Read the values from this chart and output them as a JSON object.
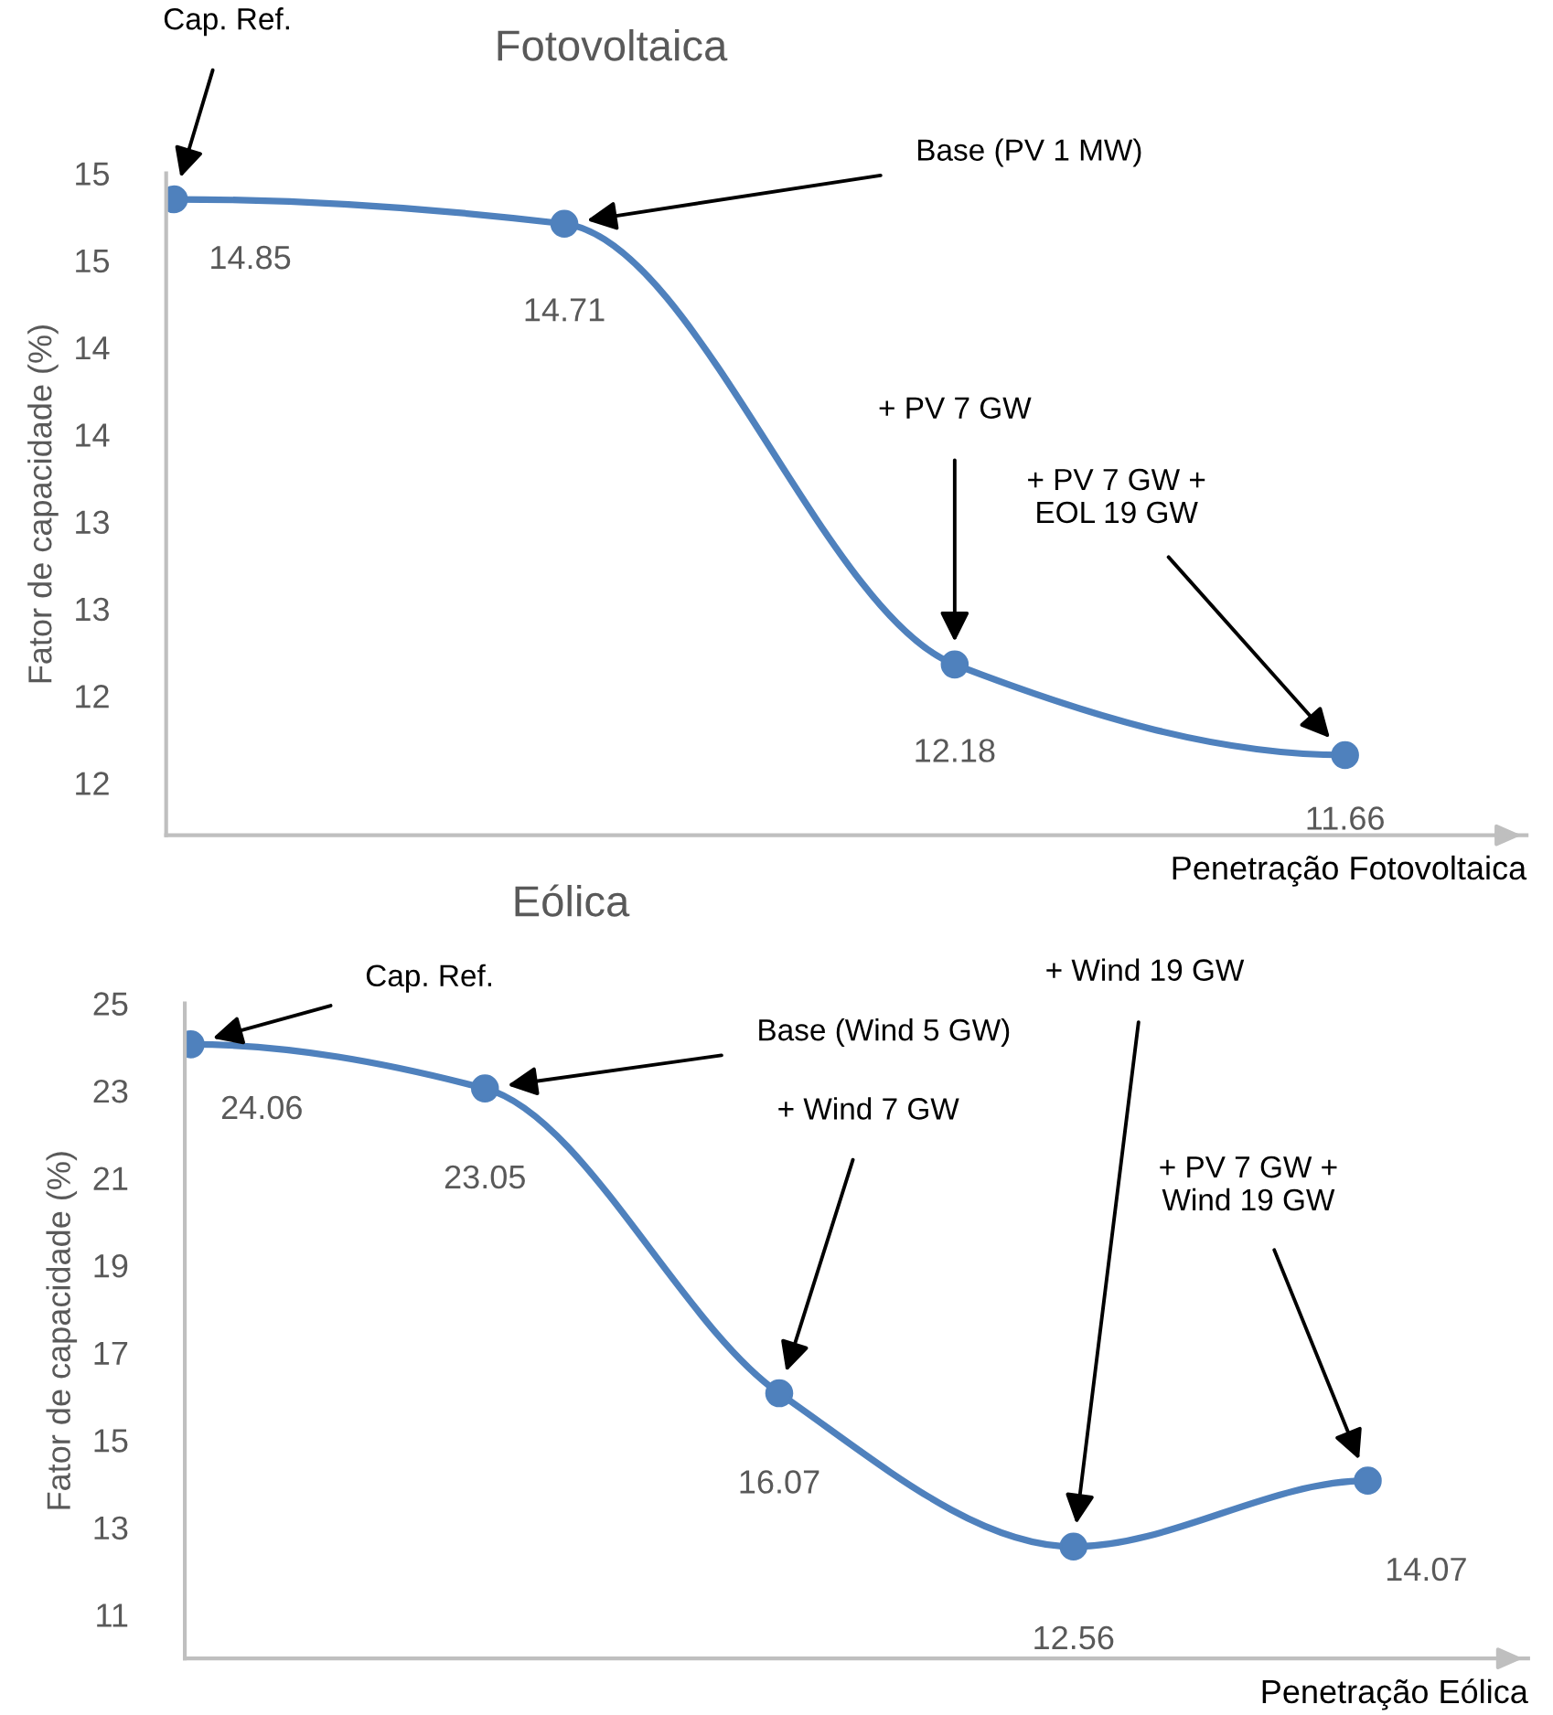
{
  "chart_data": [
    {
      "type": "line",
      "title": "Fotovoltaica",
      "xlabel": "Penetração Fotovoltaica",
      "ylabel": "Fator de capacidade (%)",
      "categories": [
        null,
        null,
        null,
        null
      ],
      "series": [
        {
          "color": "#4f81bd",
          "values": [
            14.85,
            14.71,
            12.18,
            11.66
          ]
        }
      ],
      "ylim": [
        11.2,
        15
      ],
      "yticks": [
        {
          "value": 11.5,
          "label": "12"
        },
        {
          "value": 12,
          "label": "12"
        },
        {
          "value": 12.5,
          "label": "13"
        },
        {
          "value": 13,
          "label": "13"
        },
        {
          "value": 13.5,
          "label": "14"
        },
        {
          "value": 14,
          "label": "14"
        },
        {
          "value": 14.5,
          "label": "15"
        },
        {
          "value": 15,
          "label": "15"
        }
      ],
      "tick_labels": "y",
      "grid": false,
      "legend": false,
      "marker": "circle",
      "line_style": "solid",
      "data_labels": true,
      "annotations": [
        "Cap. Ref.",
        "Base (PV 1 MW)",
        "+ PV 7 GW",
        "+ PV 7 GW +\nEOL 19 GW"
      ]
    },
    {
      "type": "line",
      "title": "Eólica",
      "xlabel": "Penetração Eólica",
      "ylabel": "Fator de capacidade (%)",
      "categories": [
        null,
        null,
        null,
        null,
        null
      ],
      "series": [
        {
          "color": "#4f81bd",
          "values": [
            24.06,
            23.05,
            16.07,
            12.56,
            14.07
          ]
        }
      ],
      "ylim": [
        10,
        25
      ],
      "yticks": [
        11,
        13,
        15,
        17,
        19,
        21,
        23,
        25
      ],
      "tick_labels": "y",
      "grid": false,
      "legend": false,
      "marker": "circle",
      "line_style": "solid",
      "data_labels": true,
      "annotations": [
        "Cap. Ref.",
        "Base (Wind 5 GW)",
        "+ Wind 7 GW",
        "+ Wind 19 GW",
        "+ PV 7 GW +\nWind 19 GW"
      ]
    }
  ]
}
